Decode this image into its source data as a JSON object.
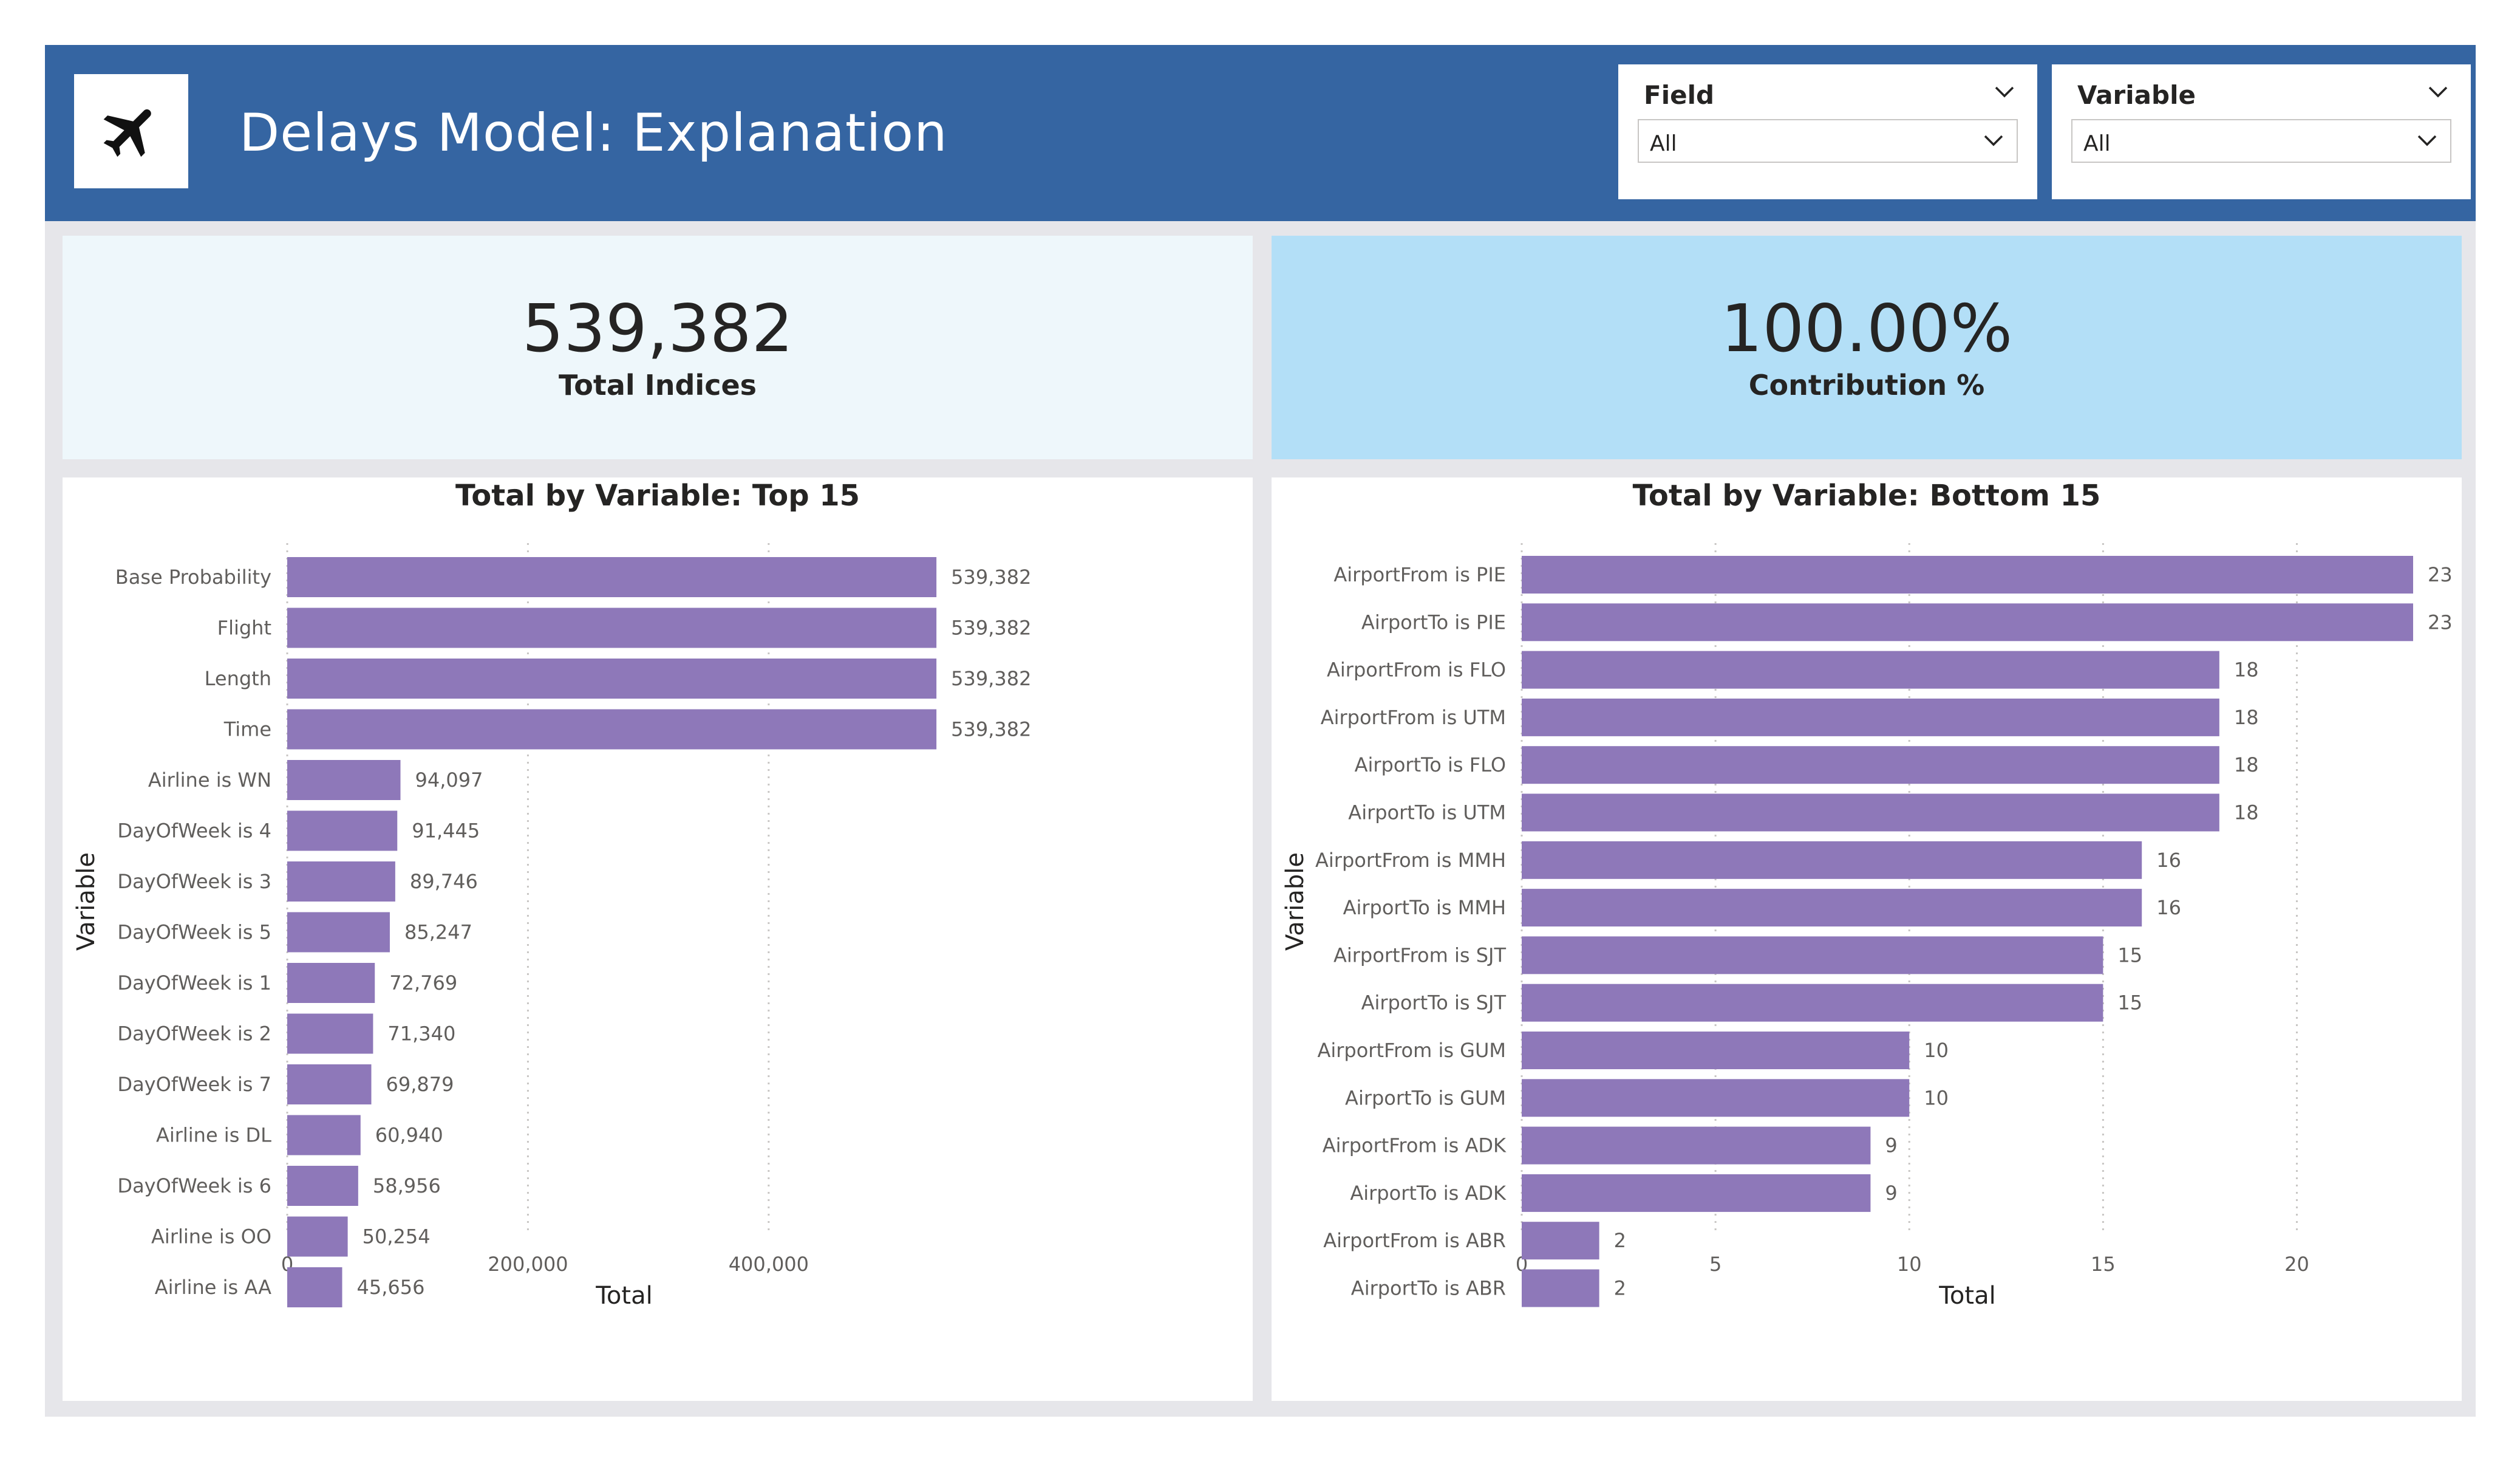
{
  "header": {
    "title": "Delays Model: Explanation",
    "logo_icon": "airplane-icon",
    "background_color": "#3565a2"
  },
  "slicers": [
    {
      "title": "Field",
      "value": "All"
    },
    {
      "title": "Variable",
      "value": "All"
    }
  ],
  "cards": [
    {
      "value": "539,382",
      "label": "Total Indices",
      "background": "#eef7fb"
    },
    {
      "value": "100.00%",
      "label": "Contribution %",
      "background": "#b3dff7"
    }
  ],
  "chart_data": [
    {
      "type": "bar",
      "orientation": "horizontal",
      "title": "Total by Variable: Top 15",
      "xlabel": "Total",
      "ylabel": "Variable",
      "bar_color": "#8e78b9",
      "xlim": [
        0,
        560000
      ],
      "xticks": [
        0,
        200000,
        400000
      ],
      "xtick_labels": [
        "0",
        "200,000",
        "400,000"
      ],
      "grid": true,
      "categories": [
        "Base Probability",
        "Flight",
        "Length",
        "Time",
        "Airline is WN",
        "DayOfWeek is 4",
        "DayOfWeek is 3",
        "DayOfWeek is 5",
        "DayOfWeek is 1",
        "DayOfWeek is 2",
        "DayOfWeek is 7",
        "Airline is DL",
        "DayOfWeek is 6",
        "Airline is OO",
        "Airline is AA"
      ],
      "values": [
        539382,
        539382,
        539382,
        539382,
        94097,
        91445,
        89746,
        85247,
        72769,
        71340,
        69879,
        60940,
        58956,
        50254,
        45656
      ],
      "value_labels": [
        "539,382",
        "539,382",
        "539,382",
        "539,382",
        "94,097",
        "91,445",
        "89,746",
        "85,247",
        "72,769",
        "71,340",
        "69,879",
        "60,940",
        "58,956",
        "50,254",
        "45,656"
      ]
    },
    {
      "type": "bar",
      "orientation": "horizontal",
      "title": "Total by Variable: Bottom 15",
      "xlabel": "Total",
      "ylabel": "Variable",
      "bar_color": "#8e78b9",
      "xlim": [
        0,
        23
      ],
      "xticks": [
        0,
        5,
        10,
        15,
        20
      ],
      "xtick_labels": [
        "0",
        "5",
        "10",
        "15",
        "20"
      ],
      "grid": true,
      "categories": [
        "AirportFrom is PIE",
        "AirportTo is PIE",
        "AirportFrom is FLO",
        "AirportFrom is UTM",
        "AirportTo is FLO",
        "AirportTo is UTM",
        "AirportFrom is MMH",
        "AirportTo is MMH",
        "AirportFrom is SJT",
        "AirportTo is SJT",
        "AirportFrom is GUM",
        "AirportTo is GUM",
        "AirportFrom is ADK",
        "AirportTo is ADK",
        "AirportFrom is ABR",
        "AirportTo is ABR"
      ],
      "values": [
        23,
        23,
        18,
        18,
        18,
        18,
        16,
        16,
        15,
        15,
        10,
        10,
        9,
        9,
        2,
        2
      ],
      "value_labels": [
        "23",
        "23",
        "18",
        "18",
        "18",
        "18",
        "16",
        "16",
        "15",
        "15",
        "10",
        "10",
        "9",
        "9",
        "2",
        "2"
      ]
    }
  ]
}
